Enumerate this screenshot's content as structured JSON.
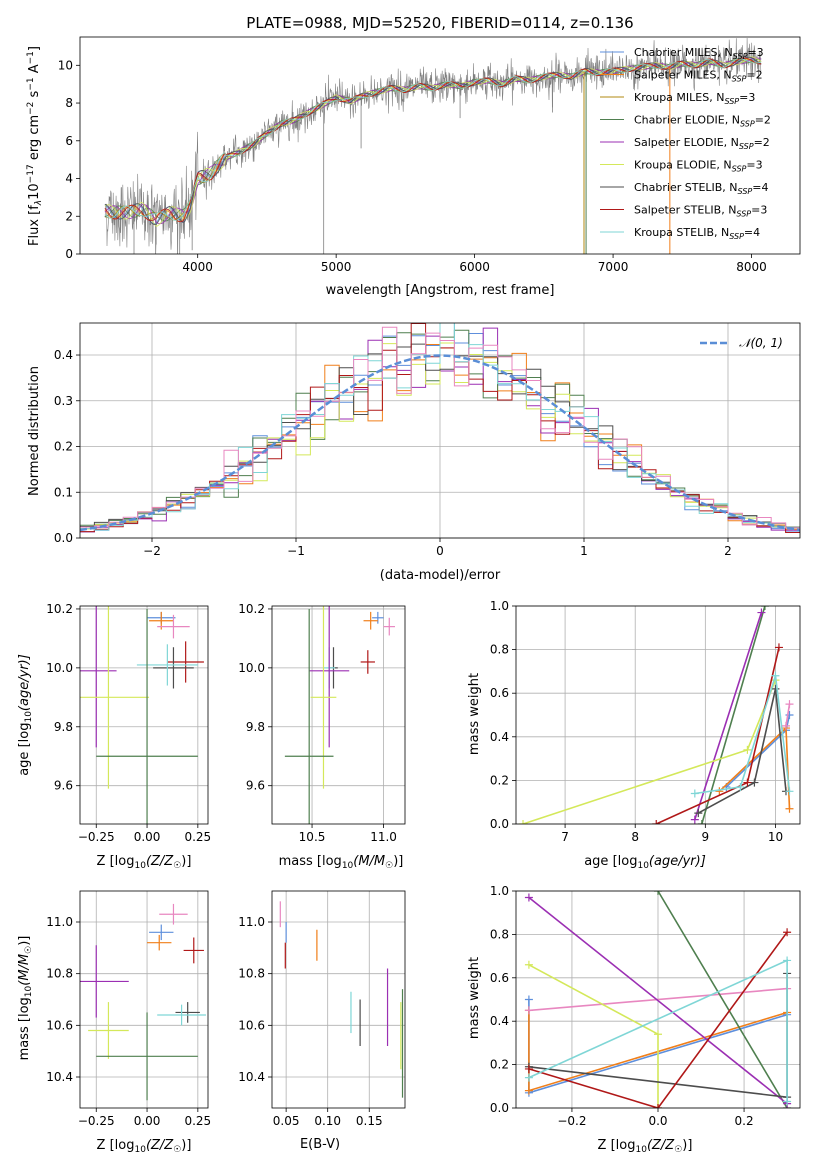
{
  "colors": {
    "Chabrier MILES": "#5e8fdc",
    "Salpeter MILES": "#f07f1a",
    "Kroupa MILES": "#b08810",
    "Chabrier ELODIE": "#4f7f4f",
    "Salpeter ELODIE": "#9b2fb3",
    "Kroupa ELODIE": "#d4e85a",
    "Chabrier STELIB": "#4d4d4d",
    "Salpeter STELIB": "#b01818",
    "Kroupa STELIB": "#7fd6d6",
    "pink": "#e887c0"
  },
  "chart_data": [
    {
      "panel": "spectrum",
      "type": "line",
      "title": "PLATE=0988, MJD=52520, FIBERID=0114, z=0.136",
      "xlabel": "wavelength [Angstrom, rest frame]",
      "ylabel_parts": {
        "a": "Flux [f",
        "b": "λ",
        "c": "10",
        "d": "−17",
        "e": " erg cm",
        "f": "−2",
        "g": " s",
        "h": "−1",
        "i": " A",
        "j": "−1",
        "k": "]"
      },
      "xlim": [
        3150,
        8350
      ],
      "ylim": [
        0,
        11.5
      ],
      "xticks": [
        4000,
        5000,
        6000,
        7000,
        8000
      ],
      "yticks": [
        0,
        2,
        4,
        6,
        8,
        10
      ],
      "data_color": "#808080",
      "data_points": [
        [
          3330,
          2.3
        ],
        [
          3400,
          2.2
        ],
        [
          3500,
          2.2
        ],
        [
          3600,
          2.4
        ],
        [
          3700,
          1.8
        ],
        [
          3800,
          2.2
        ],
        [
          3900,
          2.0
        ],
        [
          3950,
          2.6
        ],
        [
          4000,
          4.0
        ],
        [
          4100,
          4.3
        ],
        [
          4200,
          5.1
        ],
        [
          4300,
          5.4
        ],
        [
          4400,
          5.8
        ],
        [
          4500,
          6.4
        ],
        [
          4600,
          6.9
        ],
        [
          4700,
          7.1
        ],
        [
          4800,
          7.5
        ],
        [
          4900,
          7.9
        ],
        [
          5000,
          8.3
        ],
        [
          5100,
          8.1
        ],
        [
          5200,
          8.4
        ],
        [
          5300,
          8.6
        ],
        [
          5400,
          8.8
        ],
        [
          5500,
          8.7
        ],
        [
          5600,
          8.9
        ],
        [
          5700,
          8.8
        ],
        [
          5800,
          9.0
        ],
        [
          5900,
          8.9
        ],
        [
          6000,
          9.1
        ],
        [
          6100,
          9.2
        ],
        [
          6200,
          9.0
        ],
        [
          6300,
          9.3
        ],
        [
          6400,
          9.2
        ],
        [
          6500,
          9.4
        ],
        [
          6600,
          9.5
        ],
        [
          6700,
          9.4
        ],
        [
          6800,
          9.7
        ],
        [
          6900,
          9.6
        ],
        [
          7000,
          9.7
        ],
        [
          7100,
          9.8
        ],
        [
          7200,
          9.9
        ],
        [
          7300,
          10.0
        ],
        [
          7400,
          9.9
        ],
        [
          7500,
          10.1
        ],
        [
          7600,
          10.0
        ],
        [
          7700,
          10.2
        ],
        [
          7800,
          10.0
        ],
        [
          7900,
          10.2
        ],
        [
          8000,
          10.3
        ],
        [
          8070,
          10.2
        ]
      ],
      "legend": [
        {
          "name": "Chabrier MILES",
          "ssp": "3"
        },
        {
          "name": "Salpeter MILES",
          "ssp": "2"
        },
        {
          "name": "Kroupa MILES",
          "ssp": "3"
        },
        {
          "name": "Chabrier ELODIE",
          "ssp": "2"
        },
        {
          "name": "Salpeter ELODIE",
          "ssp": "2"
        },
        {
          "name": "Kroupa ELODIE",
          "ssp": "3"
        },
        {
          "name": "Chabrier STELIB",
          "ssp": "4"
        },
        {
          "name": "Salpeter STELIB",
          "ssp": "3"
        },
        {
          "name": "Kroupa STELIB",
          "ssp": "4"
        }
      ],
      "legend_suffix": {
        "n": "N",
        "sub": "SSP",
        "eq": "="
      }
    },
    {
      "panel": "residuals",
      "type": "histogram",
      "xlabel": "(data-model)/error",
      "ylabel": "Normed distribution",
      "xlim": [
        -2.5,
        2.5
      ],
      "ylim": [
        0,
        0.47
      ],
      "xticks": [
        -2,
        -1,
        0,
        1,
        2
      ],
      "yticks": [
        0.0,
        0.1,
        0.2,
        0.3,
        0.4
      ],
      "bin_width": 0.1,
      "legend": "𝒩(0, 1)",
      "gauss_color": "#5a8ed6"
    },
    {
      "panel": "age-vs-Z",
      "type": "errorbar",
      "xlabel": "Z [log10(Z/Z☉)]",
      "xlabel_parts": {
        "a": "Z [log",
        "b": "10",
        "c": "(Z/Z",
        "d": "☉",
        "e": ")]"
      },
      "ylabel_parts": {
        "a": "age  [log",
        "b": "10",
        "c": "(age/yr)]"
      },
      "xlim": [
        -0.33,
        0.3
      ],
      "ylim": [
        9.47,
        10.21
      ],
      "xticks": [
        -0.25,
        0.0,
        0.25
      ],
      "yticks": [
        9.6,
        9.8,
        10.0,
        10.2
      ],
      "points": [
        {
          "m": "Chabrier MILES",
          "x": 0.07,
          "y": 10.17,
          "xe": 0.07,
          "ye": 0.02
        },
        {
          "m": "Salpeter MILES",
          "x": 0.07,
          "y": 10.16,
          "xe": 0.06,
          "ye": 0.03
        },
        {
          "m": "pink",
          "x": 0.13,
          "y": 10.14,
          "xe": 0.08,
          "ye": 0.04
        },
        {
          "m": "Salpeter STELIB",
          "x": 0.19,
          "y": 10.02,
          "xe": 0.09,
          "ye": 0.07
        },
        {
          "m": "Chabrier STELIB",
          "x": 0.13,
          "y": 10.0,
          "xe": 0.1,
          "ye": 0.07
        },
        {
          "m": "Kroupa STELIB",
          "x": 0.1,
          "y": 10.01,
          "xe": 0.15,
          "ye": 0.07
        },
        {
          "m": "Salpeter ELODIE",
          "x": -0.25,
          "y": 9.99,
          "xe": 0.1,
          "ye": 0.26
        },
        {
          "m": "Kroupa ELODIE",
          "x": -0.19,
          "y": 9.9,
          "xe": 0.2,
          "ye": 0.31
        },
        {
          "m": "Chabrier ELODIE",
          "x": 0.0,
          "y": 9.7,
          "xe": 0.25,
          "ye": 0.5
        }
      ]
    },
    {
      "panel": "age-vs-mass",
      "type": "errorbar",
      "xlabel_parts": {
        "a": "mass [log",
        "b": "10",
        "c": "(M/M",
        "d": "☉",
        "e": ")]"
      },
      "xlim": [
        10.22,
        11.15
      ],
      "ylim": [
        9.47,
        10.21
      ],
      "xticks": [
        10.5,
        11.0
      ],
      "yticks": [
        9.6,
        9.8,
        10.0,
        10.2
      ],
      "points": [
        {
          "m": "Chabrier MILES",
          "x": 10.96,
          "y": 10.17,
          "xe": 0.04,
          "ye": 0.02
        },
        {
          "m": "Salpeter MILES",
          "x": 10.91,
          "y": 10.16,
          "xe": 0.05,
          "ye": 0.03
        },
        {
          "m": "pink",
          "x": 11.04,
          "y": 10.14,
          "xe": 0.04,
          "ye": 0.03
        },
        {
          "m": "Salpeter STELIB",
          "x": 10.89,
          "y": 10.02,
          "xe": 0.05,
          "ye": 0.04
        },
        {
          "m": "Chabrier STELIB",
          "x": 10.65,
          "y": 10.0,
          "xe": 0.03,
          "ye": 0.07
        },
        {
          "m": "Kroupa STELIB",
          "x": 10.62,
          "y": 10.0,
          "xe": 0.04,
          "ye": 0.07
        },
        {
          "m": "Salpeter ELODIE",
          "x": 10.62,
          "y": 9.99,
          "xe": 0.14,
          "ye": 0.26
        },
        {
          "m": "Kroupa ELODIE",
          "x": 10.58,
          "y": 9.9,
          "xe": 0.09,
          "ye": 0.31
        },
        {
          "m": "Chabrier ELODIE",
          "x": 10.48,
          "y": 9.7,
          "xe": 0.17,
          "ye": 0.5
        }
      ]
    },
    {
      "panel": "weight-vs-age",
      "type": "line",
      "xlabel_parts": {
        "a": "age  [log",
        "b": "10",
        "c": "(age/yr)]"
      },
      "ylabel": "mass weight",
      "xlim": [
        6.3,
        10.35
      ],
      "ylim": [
        0,
        1
      ],
      "xticks": [
        7,
        8,
        9,
        10
      ],
      "yticks": [
        0.0,
        0.2,
        0.4,
        0.6,
        0.8,
        1.0
      ],
      "series": [
        {
          "m": "Chabrier MILES",
          "pts": [
            [
              9.3,
              0.17
            ],
            [
              10.15,
              0.43
            ],
            [
              10.2,
              0.5
            ]
          ]
        },
        {
          "m": "Salpeter MILES",
          "pts": [
            [
              9.2,
              0.15
            ],
            [
              10.15,
              0.44
            ],
            [
              10.2,
              0.07
            ]
          ]
        },
        {
          "m": "Chabrier ELODIE",
          "pts": [
            [
              8.95,
              0.0
            ],
            [
              9.85,
              1.0
            ]
          ]
        },
        {
          "m": "Salpeter ELODIE",
          "pts": [
            [
              8.85,
              0.02
            ],
            [
              9.8,
              0.97
            ]
          ]
        },
        {
          "m": "Kroupa ELODIE",
          "pts": [
            [
              6.4,
              0.0
            ],
            [
              9.6,
              0.34
            ],
            [
              10.0,
              0.66
            ]
          ]
        },
        {
          "m": "Chabrier STELIB",
          "pts": [
            [
              8.9,
              0.05
            ],
            [
              9.7,
              0.19
            ],
            [
              10.0,
              0.62
            ],
            [
              10.15,
              0.15
            ]
          ]
        },
        {
          "m": "Salpeter STELIB",
          "pts": [
            [
              8.3,
              0.0
            ],
            [
              9.6,
              0.19
            ],
            [
              10.05,
              0.81
            ]
          ]
        },
        {
          "m": "Kroupa STELIB",
          "pts": [
            [
              8.85,
              0.14
            ],
            [
              9.5,
              0.17
            ],
            [
              10.0,
              0.68
            ],
            [
              10.2,
              0.15
            ]
          ]
        },
        {
          "m": "pink",
          "pts": [
            [
              10.15,
              0.45
            ],
            [
              10.2,
              0.55
            ]
          ]
        }
      ]
    },
    {
      "panel": "mass-vs-Z",
      "type": "errorbar",
      "xlabel_parts": {
        "a": "Z [log",
        "b": "10",
        "c": "(Z/Z",
        "d": "☉",
        "e": ")]"
      },
      "ylabel_parts": {
        "a": "mass [log",
        "b": "10",
        "c": "(M/M",
        "d": "☉",
        "e": ")]"
      },
      "xlim": [
        -0.33,
        0.3
      ],
      "ylim": [
        10.28,
        11.12
      ],
      "xticks": [
        -0.25,
        0.0,
        0.25
      ],
      "yticks": [
        10.4,
        10.6,
        10.8,
        11.0
      ],
      "points": [
        {
          "m": "pink",
          "x": 0.13,
          "y": 11.03,
          "xe": 0.07,
          "ye": 0.04
        },
        {
          "m": "Chabrier MILES",
          "x": 0.07,
          "y": 10.96,
          "xe": 0.06,
          "ye": 0.03
        },
        {
          "m": "Salpeter MILES",
          "x": 0.06,
          "y": 10.92,
          "xe": 0.06,
          "ye": 0.03
        },
        {
          "m": "Salpeter STELIB",
          "x": 0.23,
          "y": 10.89,
          "xe": 0.05,
          "ye": 0.05
        },
        {
          "m": "Salpeter ELODIE",
          "x": -0.25,
          "y": 10.77,
          "xe": 0.16,
          "ye": 0.14
        },
        {
          "m": "Chabrier STELIB",
          "x": 0.2,
          "y": 10.65,
          "xe": 0.06,
          "ye": 0.04
        },
        {
          "m": "Kroupa STELIB",
          "x": 0.17,
          "y": 10.64,
          "xe": 0.12,
          "ye": 0.04
        },
        {
          "m": "Kroupa ELODIE",
          "x": -0.19,
          "y": 10.58,
          "xe": 0.1,
          "ye": 0.11
        },
        {
          "m": "Chabrier ELODIE",
          "x": 0.0,
          "y": 10.48,
          "xe": 0.25,
          "ye": 0.17
        }
      ]
    },
    {
      "panel": "mass-vs-EBV",
      "type": "errorbar",
      "xlabel": "E(B-V)",
      "xlim": [
        0.033,
        0.193
      ],
      "ylim": [
        10.28,
        11.12
      ],
      "xticks": [
        0.05,
        0.1,
        0.15
      ],
      "yticks": [
        10.4,
        10.6,
        10.8,
        11.0
      ],
      "points": [
        {
          "m": "pink",
          "x": 0.043,
          "y": 11.03,
          "xe": 0,
          "ye": 0.05
        },
        {
          "m": "Chabrier MILES",
          "x": 0.05,
          "y": 10.96,
          "xe": 0,
          "ye": 0.04
        },
        {
          "m": "Salpeter STELIB",
          "x": 0.049,
          "y": 10.87,
          "xe": 0,
          "ye": 0.05
        },
        {
          "m": "Salpeter MILES",
          "x": 0.087,
          "y": 10.91,
          "xe": 0,
          "ye": 0.06
        },
        {
          "m": "Kroupa STELIB",
          "x": 0.128,
          "y": 10.65,
          "xe": 0,
          "ye": 0.08
        },
        {
          "m": "Chabrier STELIB",
          "x": 0.139,
          "y": 10.61,
          "xe": 0,
          "ye": 0.09
        },
        {
          "m": "Salpeter ELODIE",
          "x": 0.172,
          "y": 10.67,
          "xe": 0,
          "ye": 0.15
        },
        {
          "m": "Kroupa ELODIE",
          "x": 0.188,
          "y": 10.56,
          "xe": 0,
          "ye": 0.13
        },
        {
          "m": "Chabrier ELODIE",
          "x": 0.19,
          "y": 10.53,
          "xe": 0,
          "ye": 0.21
        }
      ]
    },
    {
      "panel": "weight-vs-Z",
      "type": "line",
      "xlabel_parts": {
        "a": "Z [log",
        "b": "10",
        "c": "(Z/Z",
        "d": "☉",
        "e": ")]"
      },
      "ylabel": "mass weight",
      "xlim": [
        -0.33,
        0.33
      ],
      "ylim": [
        0,
        1
      ],
      "xticks": [
        -0.2,
        0.0,
        0.2
      ],
      "yticks": [
        0.0,
        0.2,
        0.4,
        0.6,
        0.8,
        1.0
      ],
      "series": [
        {
          "m": "Chabrier MILES",
          "pts": [
            [
              -0.3,
              0.5
            ],
            [
              -0.3,
              0.07
            ],
            [
              0.3,
              0.43
            ]
          ]
        },
        {
          "m": "Salpeter MILES",
          "pts": [
            [
              -0.3,
              0.45
            ],
            [
              -0.3,
              0.08
            ],
            [
              0.3,
              0.44
            ]
          ]
        },
        {
          "m": "pink",
          "pts": [
            [
              -0.3,
              0.45
            ],
            [
              0.3,
              0.55
            ]
          ]
        },
        {
          "m": "Chabrier ELODIE",
          "pts": [
            [
              0.0,
              1.0
            ],
            [
              0.3,
              0.0
            ]
          ]
        },
        {
          "m": "Salpeter ELODIE",
          "pts": [
            [
              -0.3,
              0.97
            ],
            [
              0.3,
              0.02
            ]
          ]
        },
        {
          "m": "Kroupa ELODIE",
          "pts": [
            [
              -0.3,
              0.66
            ],
            [
              0.0,
              0.34
            ],
            [
              0.0,
              0.0
            ]
          ]
        },
        {
          "m": "Chabrier STELIB",
          "pts": [
            [
              -0.3,
              0.19
            ],
            [
              0.3,
              0.05
            ],
            [
              0.3,
              0.62
            ]
          ]
        },
        {
          "m": "Salpeter STELIB",
          "pts": [
            [
              -0.3,
              0.18
            ],
            [
              0.0,
              0.0
            ],
            [
              0.3,
              0.81
            ]
          ]
        },
        {
          "m": "Kroupa STELIB",
          "pts": [
            [
              -0.3,
              0.14
            ],
            [
              0.3,
              0.68
            ],
            [
              0.3,
              0.03
            ]
          ]
        }
      ]
    }
  ]
}
